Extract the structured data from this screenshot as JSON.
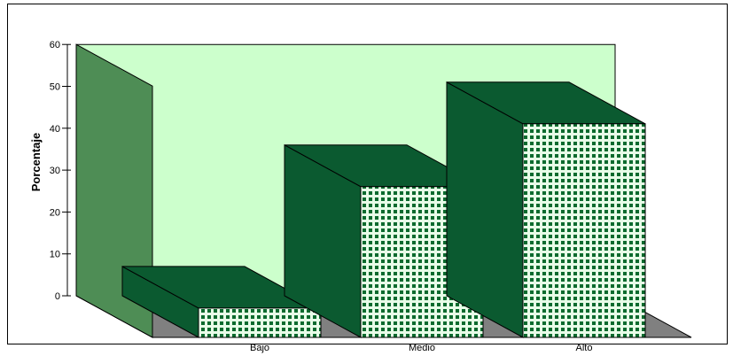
{
  "chart_data": {
    "type": "bar",
    "ylabel": "Porcentaje",
    "xlabel": "",
    "categories": [
      "Bajo",
      "Medio",
      "Alto"
    ],
    "values": [
      7,
      36,
      51
    ],
    "ylim": [
      0,
      60
    ],
    "yticks": [
      0,
      10,
      20,
      30,
      40,
      50,
      60
    ],
    "grid": false,
    "legend": "none",
    "style": "3d",
    "colors": {
      "back_wall": "#ccffcc",
      "side_wall": "#4e8d55",
      "floor": "#808080",
      "bar_front": "#e8fde8",
      "bar_pattern": "#0b6a2e",
      "bar_side": "#0b5a30",
      "bar_top": "#0b5a30",
      "outline": "#000000"
    }
  }
}
